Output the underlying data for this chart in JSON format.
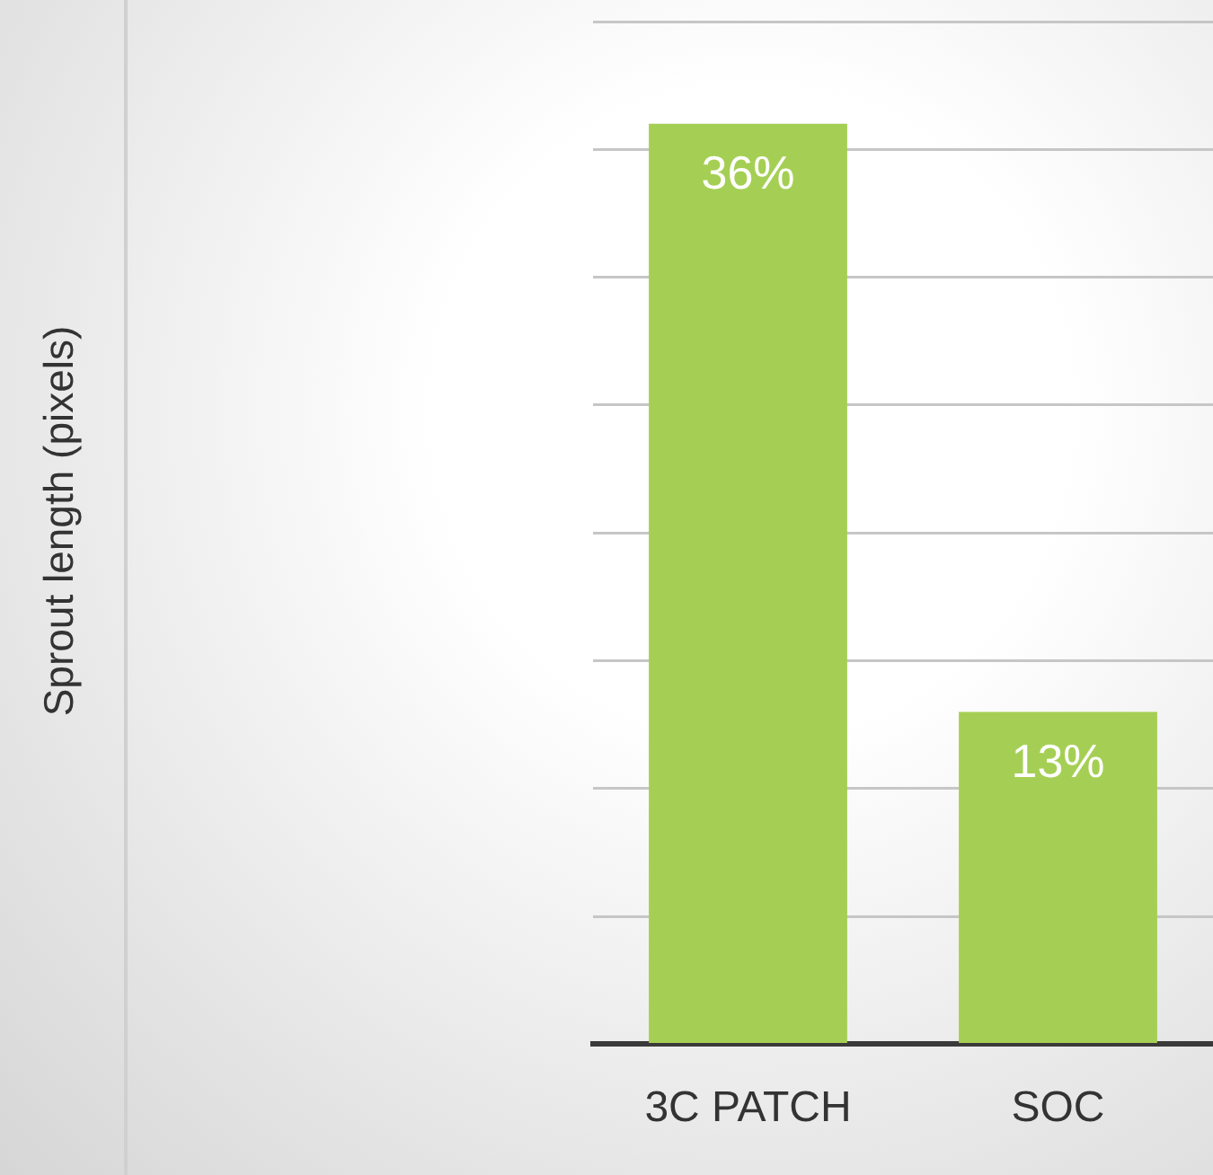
{
  "chart_data": {
    "type": "bar",
    "annotations": [
      "Sprout length (pixels)"
    ],
    "categories": [
      "3C PATCH",
      "SOC"
    ],
    "values": [
      36,
      13
    ],
    "value_labels": [
      "36%",
      "13%"
    ],
    "color": "#a5cf54",
    "ylim": [
      0,
      40
    ],
    "yticks": [
      {
        "value": 0,
        "label": null
      },
      {
        "value": 5,
        "label": null
      },
      {
        "value": 10,
        "label": null
      },
      {
        "value": 15,
        "label": null
      },
      {
        "value": 20,
        "label": null
      },
      {
        "value": 25,
        "label": null
      },
      {
        "value": 30,
        "label": null
      },
      {
        "value": 35,
        "label": null
      },
      {
        "value": 40,
        "label": null
      }
    ],
    "grid": "y",
    "tick_labels": "x",
    "legend": false
  }
}
